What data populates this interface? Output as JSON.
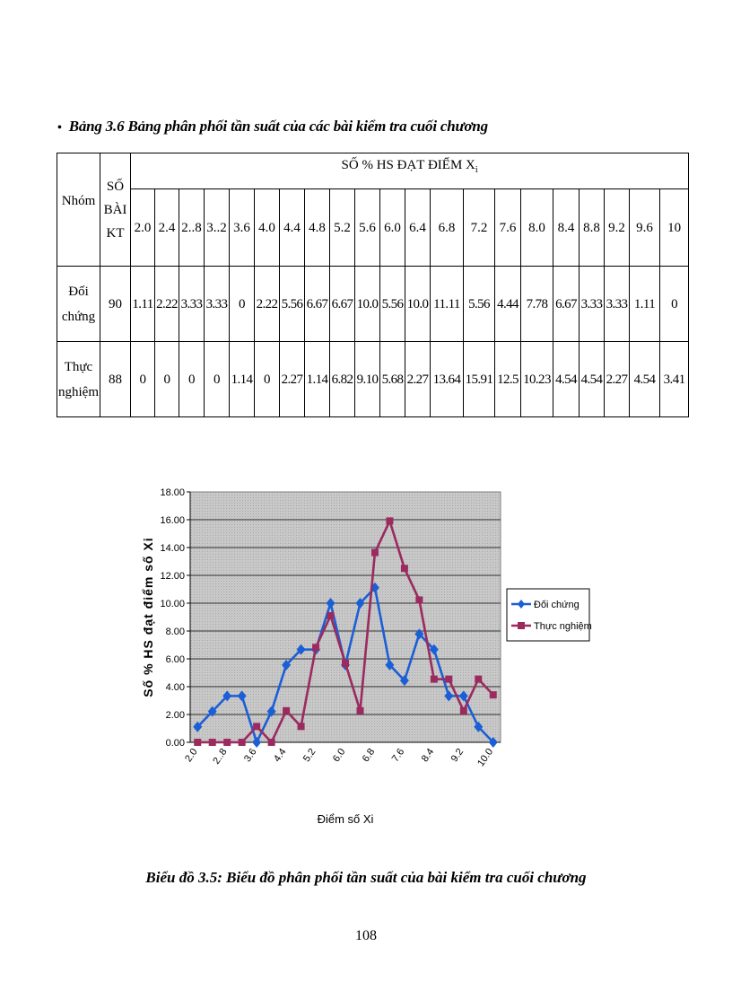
{
  "table_caption": {
    "bullet": "•",
    "text": "Bảng 3.6  Bảng phân phối tần suất của các bài kiểm tra cuối chương"
  },
  "table": {
    "header_group": "NHÓM",
    "header_group_display": "Nhóm",
    "header_count": "SỐ BÀI KT",
    "header_count_lines": [
      "SỐ",
      "BÀI",
      "KT"
    ],
    "header_percent": "SỐ % HS ĐẠT ĐIỂM X",
    "header_percent_sub": "i",
    "scores": [
      "2.0",
      "2.4",
      "2..8",
      "3..2",
      "3.6",
      "4.0",
      "4.4",
      "4.8",
      "5.2",
      "5.6",
      "6.0",
      "6.4",
      "6.8",
      "7.2",
      "7.6",
      "8.0",
      "8.4",
      "8.8",
      "9.2",
      "9.6",
      "10"
    ],
    "rows": [
      {
        "group_lines": [
          "Đối",
          "chứng"
        ],
        "count": "90",
        "values": [
          "1.11",
          "2.22",
          "3.33",
          "3.33",
          "0",
          "2.22",
          "5.56",
          "6.67",
          "6.67",
          "10.0",
          "5.56",
          "10.0",
          "11.11",
          "5.56",
          "4.44",
          "7.78",
          "6.67",
          "3.33",
          "3.33",
          "1.11",
          "0"
        ]
      },
      {
        "group_lines": [
          "Thực",
          "nghiệm"
        ],
        "count": "88",
        "values": [
          "0",
          "0",
          "0",
          "0",
          "1.14",
          "0",
          "2.27",
          "1.14",
          "6.82",
          "9.10",
          "5.68",
          "2.27",
          "13.64",
          "15.91",
          "12.5",
          "10.23",
          "4.54",
          "4.54",
          "2.27",
          "4.54",
          "3.41"
        ]
      }
    ]
  },
  "chart_data": {
    "type": "line",
    "title": "",
    "xlabel": "Điểm số Xi",
    "ylabel": "Số % HS đạt điểm số Xi",
    "ylim": [
      0,
      18
    ],
    "yticks": [
      "0.00",
      "2.00",
      "4.00",
      "6.00",
      "8.00",
      "10.00",
      "12.00",
      "14.00",
      "16.00",
      "18.00"
    ],
    "categories": [
      "2.0",
      "2.4",
      "2..8",
      "3..2",
      "3.6",
      "4.0",
      "4.4",
      "4.8",
      "5.2",
      "5.6",
      "6.0",
      "6.4",
      "6.8",
      "7.2",
      "7.6",
      "8.0",
      "8.4",
      "8.8",
      "9.2",
      "9.6",
      "10.0"
    ],
    "xtick_labels": [
      "2.0",
      "2..8",
      "3.6",
      "4.4",
      "5.2",
      "6.0",
      "6.8",
      "7.6",
      "8.4",
      "9.2",
      "10.0"
    ],
    "series": [
      {
        "name": "Đối chứng",
        "color": "#1a5fd6",
        "marker": "diamond",
        "values": [
          1.11,
          2.22,
          3.33,
          3.33,
          0,
          2.22,
          5.56,
          6.67,
          6.67,
          10.0,
          5.56,
          10.0,
          11.11,
          5.56,
          4.44,
          7.78,
          6.67,
          3.33,
          3.33,
          1.11,
          0
        ]
      },
      {
        "name": "Thực nghiệm",
        "color": "#9b2a5f",
        "marker": "square",
        "values": [
          0,
          0,
          0,
          0,
          1.14,
          0,
          2.27,
          1.14,
          6.82,
          9.1,
          5.68,
          2.27,
          13.64,
          15.91,
          12.5,
          10.23,
          4.54,
          4.54,
          2.27,
          4.54,
          3.41
        ]
      }
    ],
    "legend_position": "right",
    "grid": true,
    "plot_background": "#c8c8c8"
  },
  "chart_caption": "Biểu đồ 3.5: Biểu đồ phân phối tần suất của bài kiểm tra cuối chương",
  "page_number": "108"
}
